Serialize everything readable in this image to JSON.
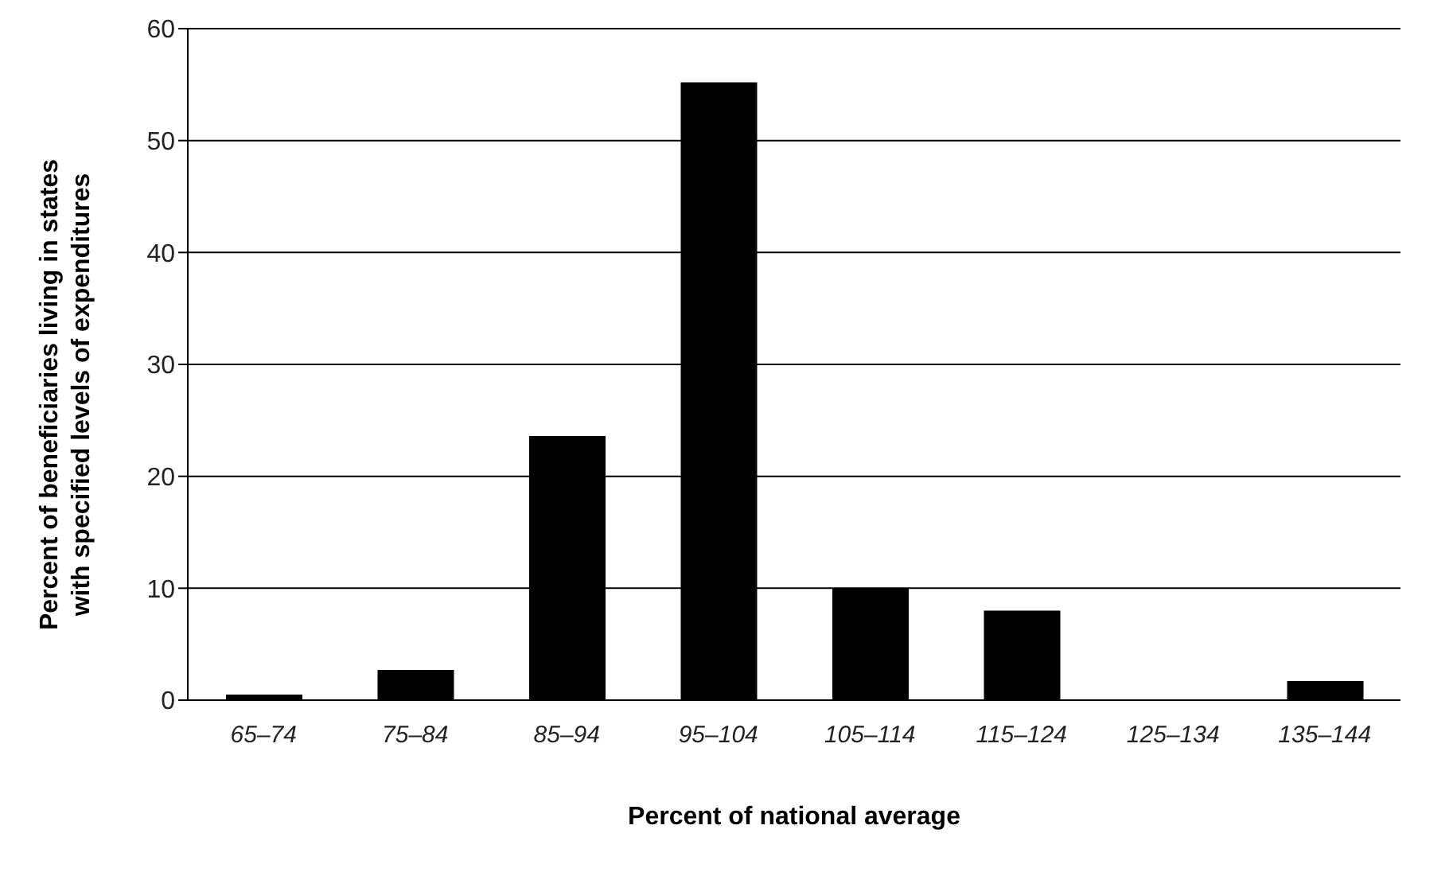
{
  "chart_data": {
    "type": "bar",
    "xlabel": "Percent of national average",
    "ylabel": "Percent of beneficiaries living in states with specified levels of expenditures",
    "categories": [
      "65–74",
      "75–84",
      "85–94",
      "95–104",
      "105–114",
      "115–124",
      "125–134",
      "135–144"
    ],
    "values": [
      0.5,
      2.7,
      23.6,
      55.2,
      10,
      8,
      0,
      1.7
    ],
    "color": "#000000",
    "ylim": [
      0,
      60
    ],
    "yticks": [
      0,
      10,
      20,
      30,
      40,
      50,
      60
    ],
    "grid": "y"
  }
}
